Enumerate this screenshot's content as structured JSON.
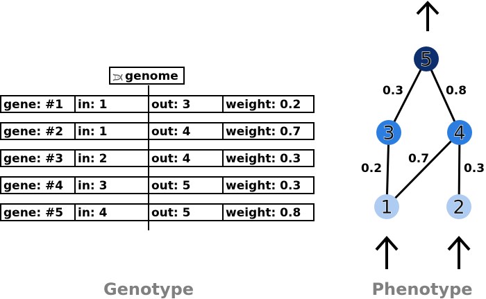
{
  "genome_label": "genome",
  "genotype_caption": "Genotype",
  "phenotype_caption": "Phenotype",
  "genes": [
    {
      "gene": "gene: #1",
      "in": "in: 1",
      "out": "out: 3",
      "weight": "weight: 0.2"
    },
    {
      "gene": "gene: #2",
      "in": "in: 1",
      "out": "out: 4",
      "weight": "weight: 0.7"
    },
    {
      "gene": "gene: #3",
      "in": "in: 2",
      "out": "out: 4",
      "weight": "weight: 0.3"
    },
    {
      "gene": "gene: #4",
      "in": "in: 3",
      "out": "out: 5",
      "weight": "weight: 0.3"
    },
    {
      "gene": "gene: #5",
      "in": "in: 4",
      "out": "out: 5",
      "weight": "weight: 0.8"
    }
  ],
  "network": {
    "nodes": [
      {
        "id": "1",
        "role": "input",
        "color": "#aecbf2"
      },
      {
        "id": "2",
        "role": "input",
        "color": "#aecbf2"
      },
      {
        "id": "3",
        "role": "hidden",
        "color": "#2b7de0"
      },
      {
        "id": "4",
        "role": "hidden",
        "color": "#2b7de0"
      },
      {
        "id": "5",
        "role": "output",
        "color": "#0e2f6e"
      }
    ],
    "edges": [
      {
        "from": "1",
        "to": "3",
        "weight": "0.2"
      },
      {
        "from": "1",
        "to": "4",
        "weight": "0.7"
      },
      {
        "from": "2",
        "to": "4",
        "weight": "0.3"
      },
      {
        "from": "3",
        "to": "5",
        "weight": "0.3"
      },
      {
        "from": "4",
        "to": "5",
        "weight": "0.8"
      }
    ]
  },
  "icons": {
    "genome": "dna-icon",
    "input_arrow": "arrow-up-icon",
    "output_arrow": "arrow-up-icon"
  },
  "colors": {
    "caption": "#808080",
    "line": "#000000"
  }
}
